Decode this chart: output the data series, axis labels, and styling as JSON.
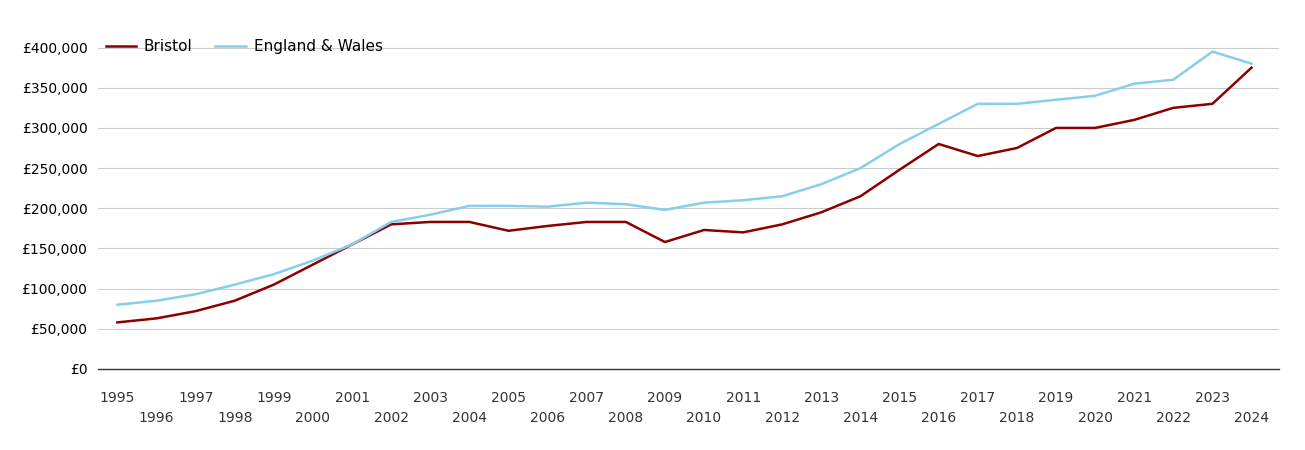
{
  "years": [
    1995,
    1996,
    1997,
    1998,
    1999,
    2000,
    2001,
    2002,
    2003,
    2004,
    2005,
    2006,
    2007,
    2008,
    2009,
    2010,
    2011,
    2012,
    2013,
    2014,
    2015,
    2016,
    2017,
    2018,
    2019,
    2020,
    2021,
    2022,
    2023,
    2024
  ],
  "bristol": [
    58000,
    63000,
    72000,
    85000,
    105000,
    130000,
    155000,
    180000,
    183000,
    183000,
    172000,
    178000,
    183000,
    183000,
    158000,
    173000,
    170000,
    180000,
    195000,
    215000,
    248000,
    280000,
    265000,
    275000,
    300000,
    300000,
    310000,
    325000,
    330000,
    375000
  ],
  "england_wales": [
    80000,
    85000,
    93000,
    105000,
    118000,
    135000,
    155000,
    183000,
    192000,
    203000,
    203000,
    202000,
    207000,
    205000,
    198000,
    207000,
    210000,
    215000,
    230000,
    250000,
    280000,
    305000,
    330000,
    330000,
    335000,
    340000,
    355000,
    360000,
    395000,
    380000
  ],
  "bristol_color": "#8B0000",
  "england_wales_color": "#87CEEB",
  "background_color": "#ffffff",
  "grid_color": "#cccccc",
  "ylim": [
    0,
    420000
  ],
  "yticks": [
    0,
    50000,
    100000,
    150000,
    200000,
    250000,
    300000,
    350000,
    400000
  ],
  "legend_bristol": "Bristol",
  "legend_ew": "England & Wales",
  "line_width": 1.8,
  "tick_label_fontsize": 10,
  "legend_fontsize": 11
}
